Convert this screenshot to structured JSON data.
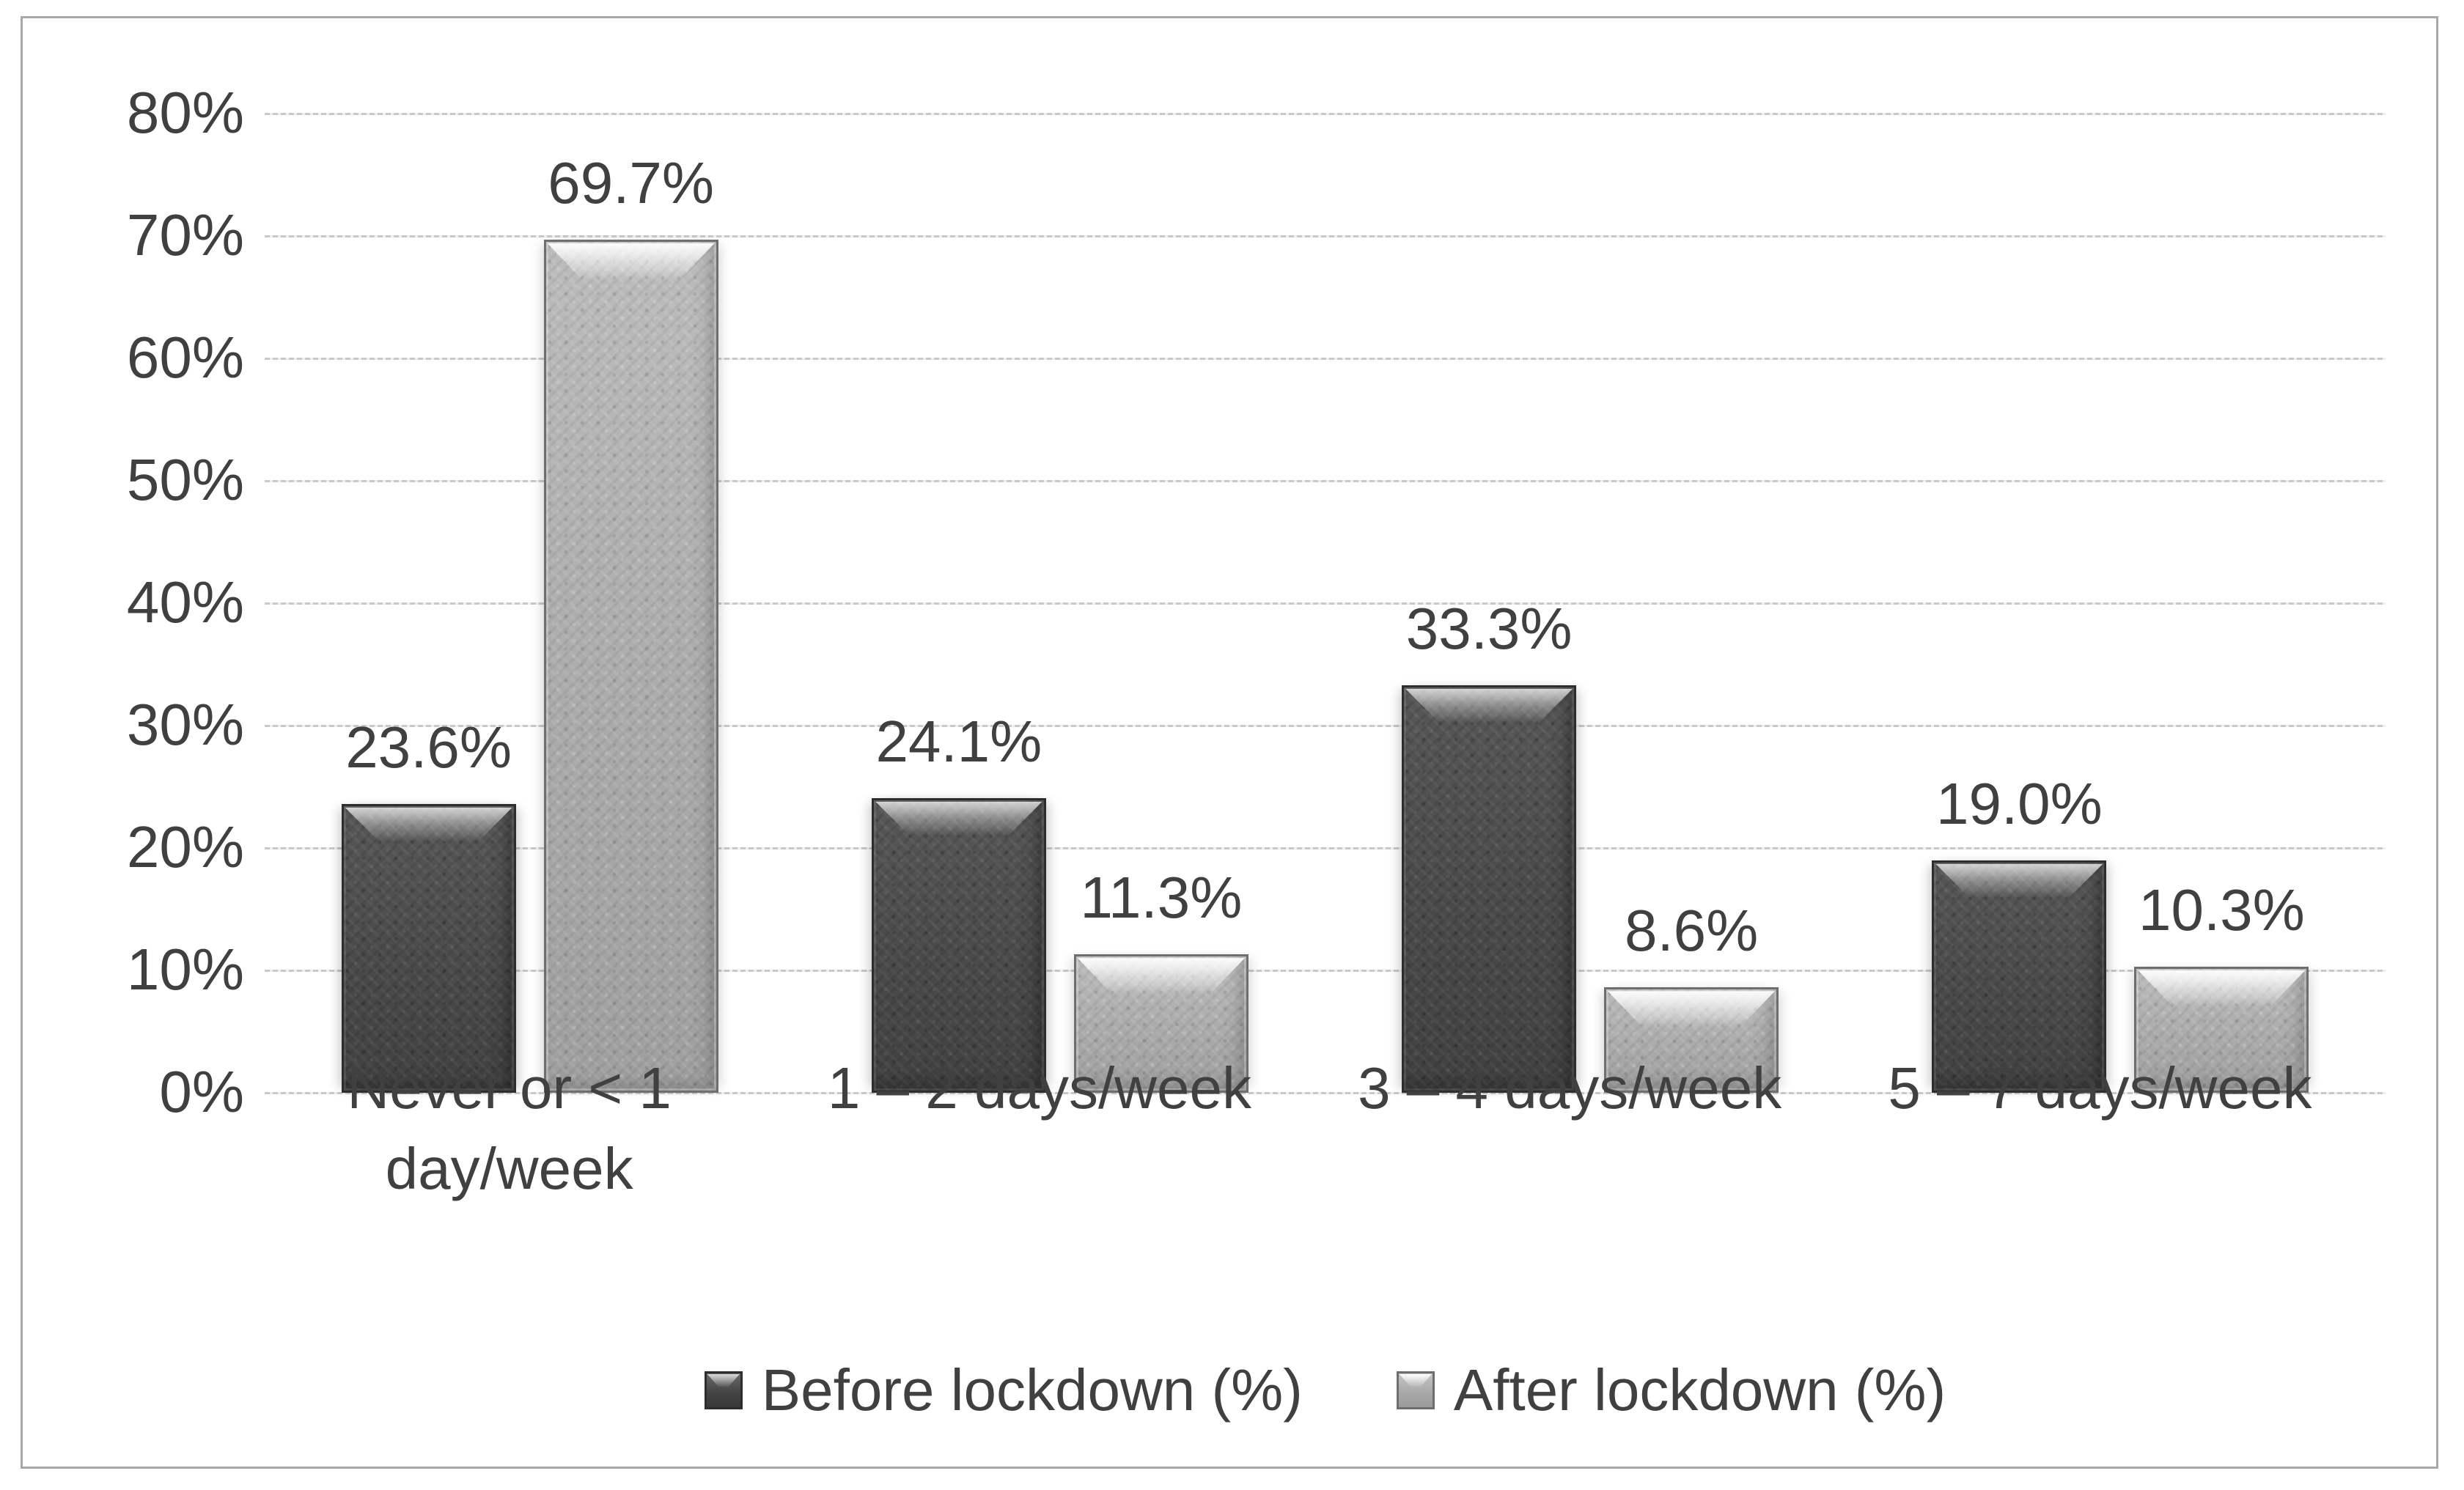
{
  "chart_data": {
    "type": "bar",
    "title": "",
    "xlabel": "",
    "ylabel": "",
    "categories": [
      "Never or < 1 day/week",
      "1 – 2 days/week",
      "3 – 4 days/week",
      "5 – 7 days/week"
    ],
    "category_lines": [
      [
        "Never or < 1",
        "day/week"
      ],
      [
        "1 – 2 days/week"
      ],
      [
        "3 – 4 days/week"
      ],
      [
        "5 – 7 days/week"
      ]
    ],
    "series": [
      {
        "name": "Before lockdown (%)",
        "values": [
          23.6,
          24.1,
          33.3,
          19.0
        ],
        "labels": [
          "23.6%",
          "24.1%",
          "33.3%",
          "19.0%"
        ],
        "color": "#4e4e4e"
      },
      {
        "name": "After lockdown (%)",
        "values": [
          69.7,
          11.3,
          8.6,
          10.3
        ],
        "labels": [
          "69.7%",
          "11.3%",
          "8.6%",
          "10.3%"
        ],
        "color": "#adadad"
      }
    ],
    "y_axis": {
      "min": 0,
      "max": 80,
      "step": 10,
      "tick_values": [
        0,
        10,
        20,
        30,
        40,
        50,
        60,
        70,
        80
      ],
      "tick_labels": [
        "0%",
        "10%",
        "20%",
        "30%",
        "40%",
        "50%",
        "60%",
        "70%",
        "80%"
      ]
    },
    "grid": true,
    "legend_position": "bottom",
    "colors": {
      "before": "#4e4e4e",
      "after": "#adadad",
      "text": "#404040",
      "gridline": "#c9c9c9",
      "frame_border": "#a8a8a8"
    }
  }
}
